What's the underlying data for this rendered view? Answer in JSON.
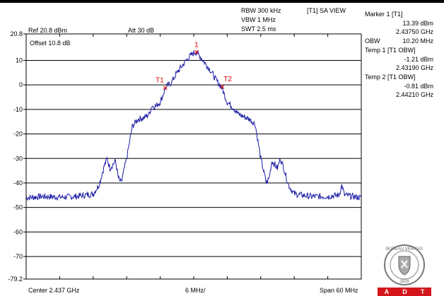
{
  "settings": {
    "rbw": "RBW 300 kHz",
    "vbw": "VBW 1 MHz",
    "swt": "SWT 2.5 ms",
    "trace_mode": "[T1] SA VIEW",
    "ref": "Ref 20.8 dBm",
    "att": "Att  30 dB",
    "offset": "Offset 10.8 dB",
    "center": "Center 2.437 GHz",
    "div": "6 MHz/",
    "span": "Span 60 MHz"
  },
  "markers_panel": {
    "marker1_title": "Marker 1 [T1]",
    "marker1_level": "13.39 dBm",
    "marker1_freq": "2.43750 GHz",
    "obw_label": "OBW",
    "obw_value": "10.20 MHz",
    "temp1_title": "Temp 1 [T1 OBW]",
    "temp1_level": "-1.21 dBm",
    "temp1_freq": "2.43190 GHz",
    "temp2_title": "Temp 2 [T1 OBW]",
    "temp2_level": "-0.81 dBm",
    "temp2_freq": "2.44210 GHz"
  },
  "logo": {
    "seal_text": "BUREAU VERITAS",
    "seal_year": "1828",
    "letters": [
      "A",
      "D",
      "T"
    ],
    "accent_color": "#d4161c"
  },
  "chart_data": {
    "type": "line",
    "ylim": [
      -79.2,
      20.8
    ],
    "xlim": [
      2.407,
      2.467
    ],
    "ytick_labels": [
      "20.8",
      "10",
      "0",
      "-10",
      "-20",
      "-30",
      "-40",
      "-50",
      "-60",
      "-70",
      "-79.2"
    ],
    "ytick_values": [
      20.8,
      10,
      0,
      -10,
      -20,
      -30,
      -40,
      -50,
      -60,
      -70,
      -79.2
    ],
    "x_divisions": 10,
    "grid": true,
    "series": [
      {
        "x": [
          2.407,
          2.41,
          2.413,
          2.416,
          2.419,
          2.42,
          2.421,
          2.4215,
          2.422,
          2.423,
          2.4235,
          2.424,
          2.425,
          2.426,
          2.427,
          2.428,
          2.429,
          2.4295,
          2.43,
          2.431,
          2.432,
          2.433,
          2.434,
          2.435,
          2.436,
          2.437,
          2.4375,
          2.438,
          2.439,
          2.44,
          2.441,
          2.442,
          2.443,
          2.444,
          2.445,
          2.446,
          2.447,
          2.448,
          2.449,
          2.45,
          2.4505,
          2.451,
          2.452,
          2.4525,
          2.453,
          2.454,
          2.455,
          2.458,
          2.461,
          2.463,
          2.4635,
          2.464,
          2.467
        ],
        "values": [
          -46,
          -45.5,
          -45.8,
          -45.5,
          -44.5,
          -41,
          -33,
          -30,
          -34,
          -31,
          -38,
          -40,
          -30,
          -17,
          -14,
          -13.5,
          -12,
          -8.5,
          -9,
          -7,
          -1,
          1,
          5,
          8,
          11,
          13,
          13.39,
          12,
          9,
          6,
          2,
          -1,
          -7,
          -9,
          -12,
          -13,
          -14,
          -16,
          -30,
          -40,
          -38,
          -31,
          -34,
          -30,
          -33,
          -41,
          -44.5,
          -45.5,
          -45.5,
          -45,
          -41,
          -45,
          -46
        ]
      }
    ],
    "markers": [
      {
        "label": "1",
        "x": 2.4375,
        "y": 13.39,
        "color": "#e00000"
      },
      {
        "label": "T1",
        "x": 2.4319,
        "y": -1.21,
        "color": "#e00000"
      },
      {
        "label": "T2",
        "x": 2.4421,
        "y": -0.81,
        "color": "#e00000"
      }
    ]
  }
}
